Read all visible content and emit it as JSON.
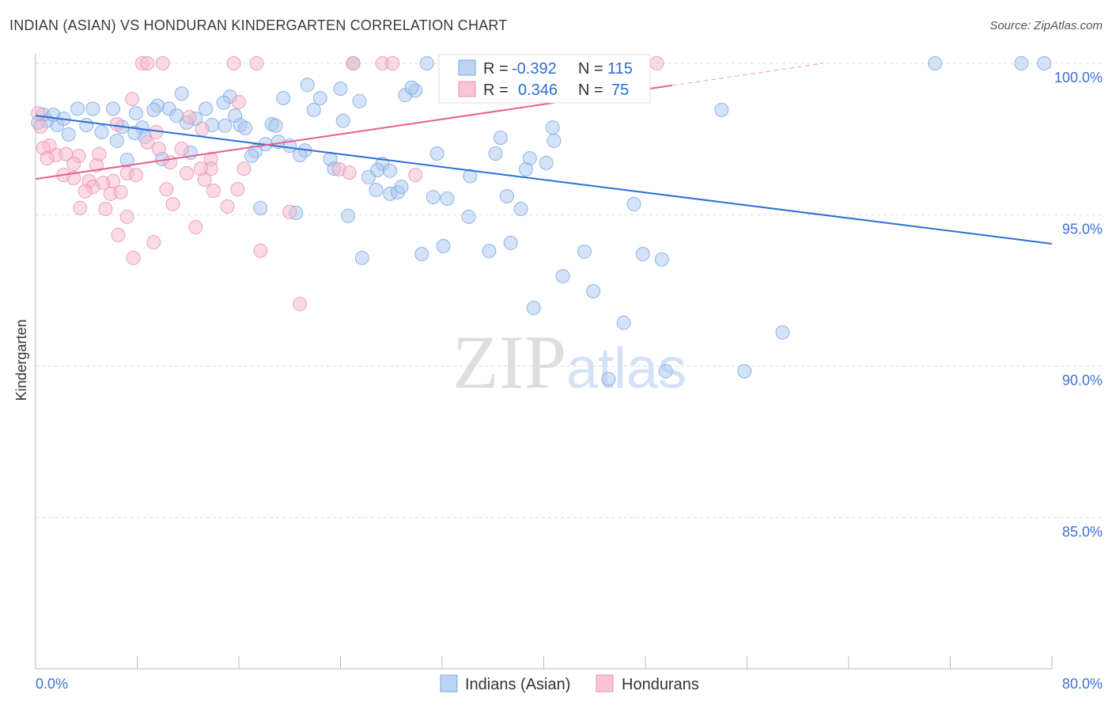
{
  "title": "INDIAN (ASIAN) VS HONDURAN KINDERGARTEN CORRELATION CHART",
  "source": "Source: ZipAtlas.com",
  "watermark": "ZIPatlas",
  "chart_data": {
    "type": "scatter",
    "title": "INDIAN (ASIAN) VS HONDURAN KINDERGARTEN CORRELATION CHART",
    "xlabel": "",
    "ylabel": "Kindergarten",
    "xlim": [
      0,
      80
    ],
    "ylim": [
      80,
      100
    ],
    "x_tick_labels": [
      "0.0%",
      "80.0%"
    ],
    "y_ticks": [
      100,
      95,
      90,
      85
    ],
    "y_tick_labels": [
      "100.0%",
      "95.0%",
      "90.0%",
      "85.0%"
    ],
    "grid": true,
    "legend_position": "top-center",
    "stats": [
      {
        "r_label": "R =",
        "r": "-0.392",
        "n_label": "N =",
        "n": "115"
      },
      {
        "r_label": "R =",
        "r": "0.346",
        "n_label": "N =",
        "n": "75"
      }
    ],
    "series": [
      {
        "name": "Indians (Asian)",
        "color": "#a9c8f0",
        "line_color": "#2b6fd6",
        "trend": {
          "x": [
            0,
            80
          ],
          "y": [
            98.27,
            94.04
          ]
        },
        "points": [
          [
            70.8,
            100
          ],
          [
            77.6,
            100
          ],
          [
            79.4,
            100
          ],
          [
            30.8,
            100
          ],
          [
            25.0,
            100
          ],
          [
            46.8,
            100
          ],
          [
            54.0,
            98.46
          ],
          [
            21.4,
            99.29
          ],
          [
            24.0,
            99.16
          ],
          [
            11.5,
            99.0
          ],
          [
            15.3,
            98.9
          ],
          [
            19.5,
            98.85
          ],
          [
            22.4,
            98.85
          ],
          [
            29.1,
            98.95
          ],
          [
            29.9,
            99.1
          ],
          [
            29.6,
            99.2
          ],
          [
            25.5,
            98.75
          ],
          [
            21.9,
            98.46
          ],
          [
            14.8,
            98.7
          ],
          [
            13.4,
            98.5
          ],
          [
            9.6,
            98.6
          ],
          [
            10.5,
            98.5
          ],
          [
            9.3,
            98.46
          ],
          [
            6.1,
            98.5
          ],
          [
            4.5,
            98.5
          ],
          [
            3.3,
            98.5
          ],
          [
            7.9,
            98.35
          ],
          [
            15.7,
            98.27
          ],
          [
            24.2,
            98.1
          ],
          [
            11.1,
            98.27
          ],
          [
            12.6,
            98.17
          ],
          [
            11.9,
            98.04
          ],
          [
            13.9,
            97.96
          ],
          [
            14.9,
            97.94
          ],
          [
            16.1,
            97.96
          ],
          [
            16.5,
            97.86
          ],
          [
            18.6,
            97.99
          ],
          [
            18.9,
            97.94
          ],
          [
            6.8,
            97.9
          ],
          [
            8.4,
            97.88
          ],
          [
            4.0,
            97.96
          ],
          [
            5.2,
            97.73
          ],
          [
            2.6,
            97.65
          ],
          [
            1.7,
            97.96
          ],
          [
            0.9,
            98.1
          ],
          [
            0.6,
            98.3
          ],
          [
            1.4,
            98.3
          ],
          [
            2.2,
            98.17
          ],
          [
            0.2,
            98.04
          ],
          [
            8.6,
            97.57
          ],
          [
            7.8,
            97.7
          ],
          [
            6.4,
            97.44
          ],
          [
            40.7,
            97.88
          ],
          [
            40.8,
            97.44
          ],
          [
            36.6,
            97.54
          ],
          [
            18.1,
            97.33
          ],
          [
            19.1,
            97.41
          ],
          [
            20.0,
            97.28
          ],
          [
            21.2,
            97.12
          ],
          [
            20.8,
            96.97
          ],
          [
            17.3,
            97.1
          ],
          [
            17.0,
            96.94
          ],
          [
            12.2,
            97.05
          ],
          [
            9.96,
            96.84
          ],
          [
            7.2,
            96.81
          ],
          [
            31.6,
            97.02
          ],
          [
            36.2,
            97.02
          ],
          [
            38.9,
            96.86
          ],
          [
            40.2,
            96.71
          ],
          [
            38.6,
            96.5
          ],
          [
            23.2,
            96.84
          ],
          [
            23.5,
            96.52
          ],
          [
            27.3,
            96.68
          ],
          [
            26.9,
            96.47
          ],
          [
            27.9,
            96.45
          ],
          [
            26.2,
            96.24
          ],
          [
            34.2,
            96.27
          ],
          [
            26.8,
            95.82
          ],
          [
            27.9,
            95.69
          ],
          [
            28.5,
            95.74
          ],
          [
            28.8,
            95.92
          ],
          [
            31.3,
            95.58
          ],
          [
            32.4,
            95.53
          ],
          [
            37.1,
            95.61
          ],
          [
            38.2,
            95.19
          ],
          [
            34.1,
            94.93
          ],
          [
            24.6,
            94.96
          ],
          [
            20.5,
            95.06
          ],
          [
            17.7,
            95.22
          ],
          [
            47.1,
            95.35
          ],
          [
            37.4,
            94.07
          ],
          [
            32.1,
            93.96
          ],
          [
            35.7,
            93.8
          ],
          [
            30.4,
            93.7
          ],
          [
            25.7,
            93.57
          ],
          [
            43.2,
            93.78
          ],
          [
            47.8,
            93.7
          ],
          [
            49.3,
            93.52
          ],
          [
            41.5,
            92.97
          ],
          [
            43.9,
            92.47
          ],
          [
            39.2,
            91.92
          ],
          [
            46.3,
            91.43
          ],
          [
            58.8,
            91.11
          ],
          [
            55.8,
            89.83
          ],
          [
            49.6,
            89.83
          ],
          [
            45.1,
            89.57
          ]
        ]
      },
      {
        "name": "Hondurans",
        "color": "#f6b8cc",
        "line_color": "#e8608a",
        "trend": {
          "x": [
            0,
            50.1
          ],
          "y": [
            96.18,
            99.27
          ],
          "dashed_to": [
            62,
            100
          ]
        },
        "points": [
          [
            8.4,
            100
          ],
          [
            8.8,
            100
          ],
          [
            10.0,
            100
          ],
          [
            15.6,
            100
          ],
          [
            17.4,
            100
          ],
          [
            25.0,
            100
          ],
          [
            27.3,
            100
          ],
          [
            28.1,
            100
          ],
          [
            40.3,
            100
          ],
          [
            41.5,
            100
          ],
          [
            48.9,
            100
          ],
          [
            7.6,
            98.82
          ],
          [
            16.0,
            98.72
          ],
          [
            12.1,
            98.22
          ],
          [
            0.2,
            98.35
          ],
          [
            0.4,
            97.91
          ],
          [
            6.4,
            97.99
          ],
          [
            9.5,
            97.73
          ],
          [
            13.1,
            97.83
          ],
          [
            8.8,
            97.39
          ],
          [
            1.1,
            97.28
          ],
          [
            0.6,
            97.2
          ],
          [
            1.6,
            96.97
          ],
          [
            2.4,
            97.0
          ],
          [
            3.4,
            96.94
          ],
          [
            5.0,
            97.0
          ],
          [
            9.7,
            97.18
          ],
          [
            11.5,
            97.18
          ],
          [
            10.6,
            96.73
          ],
          [
            13.8,
            96.84
          ],
          [
            13.8,
            96.52
          ],
          [
            13.0,
            96.52
          ],
          [
            16.4,
            96.52
          ],
          [
            0.9,
            96.86
          ],
          [
            3.0,
            96.68
          ],
          [
            4.8,
            96.63
          ],
          [
            2.2,
            96.31
          ],
          [
            3.0,
            96.21
          ],
          [
            7.2,
            96.37
          ],
          [
            7.9,
            96.31
          ],
          [
            11.9,
            96.37
          ],
          [
            13.3,
            96.16
          ],
          [
            6.1,
            96.11
          ],
          [
            4.2,
            96.11
          ],
          [
            5.3,
            96.05
          ],
          [
            4.5,
            95.92
          ],
          [
            3.9,
            95.77
          ],
          [
            5.9,
            95.69
          ],
          [
            6.7,
            95.74
          ],
          [
            10.3,
            95.84
          ],
          [
            14.0,
            95.79
          ],
          [
            15.9,
            95.84
          ],
          [
            23.9,
            96.5
          ],
          [
            24.7,
            96.39
          ],
          [
            29.9,
            96.31
          ],
          [
            3.5,
            95.22
          ],
          [
            5.5,
            95.19
          ],
          [
            10.8,
            95.35
          ],
          [
            15.1,
            95.27
          ],
          [
            20.0,
            95.09
          ],
          [
            7.2,
            94.93
          ],
          [
            12.6,
            94.59
          ],
          [
            6.5,
            94.33
          ],
          [
            9.3,
            94.09
          ],
          [
            7.7,
            93.57
          ],
          [
            17.7,
            93.81
          ],
          [
            20.8,
            92.05
          ]
        ]
      }
    ]
  }
}
